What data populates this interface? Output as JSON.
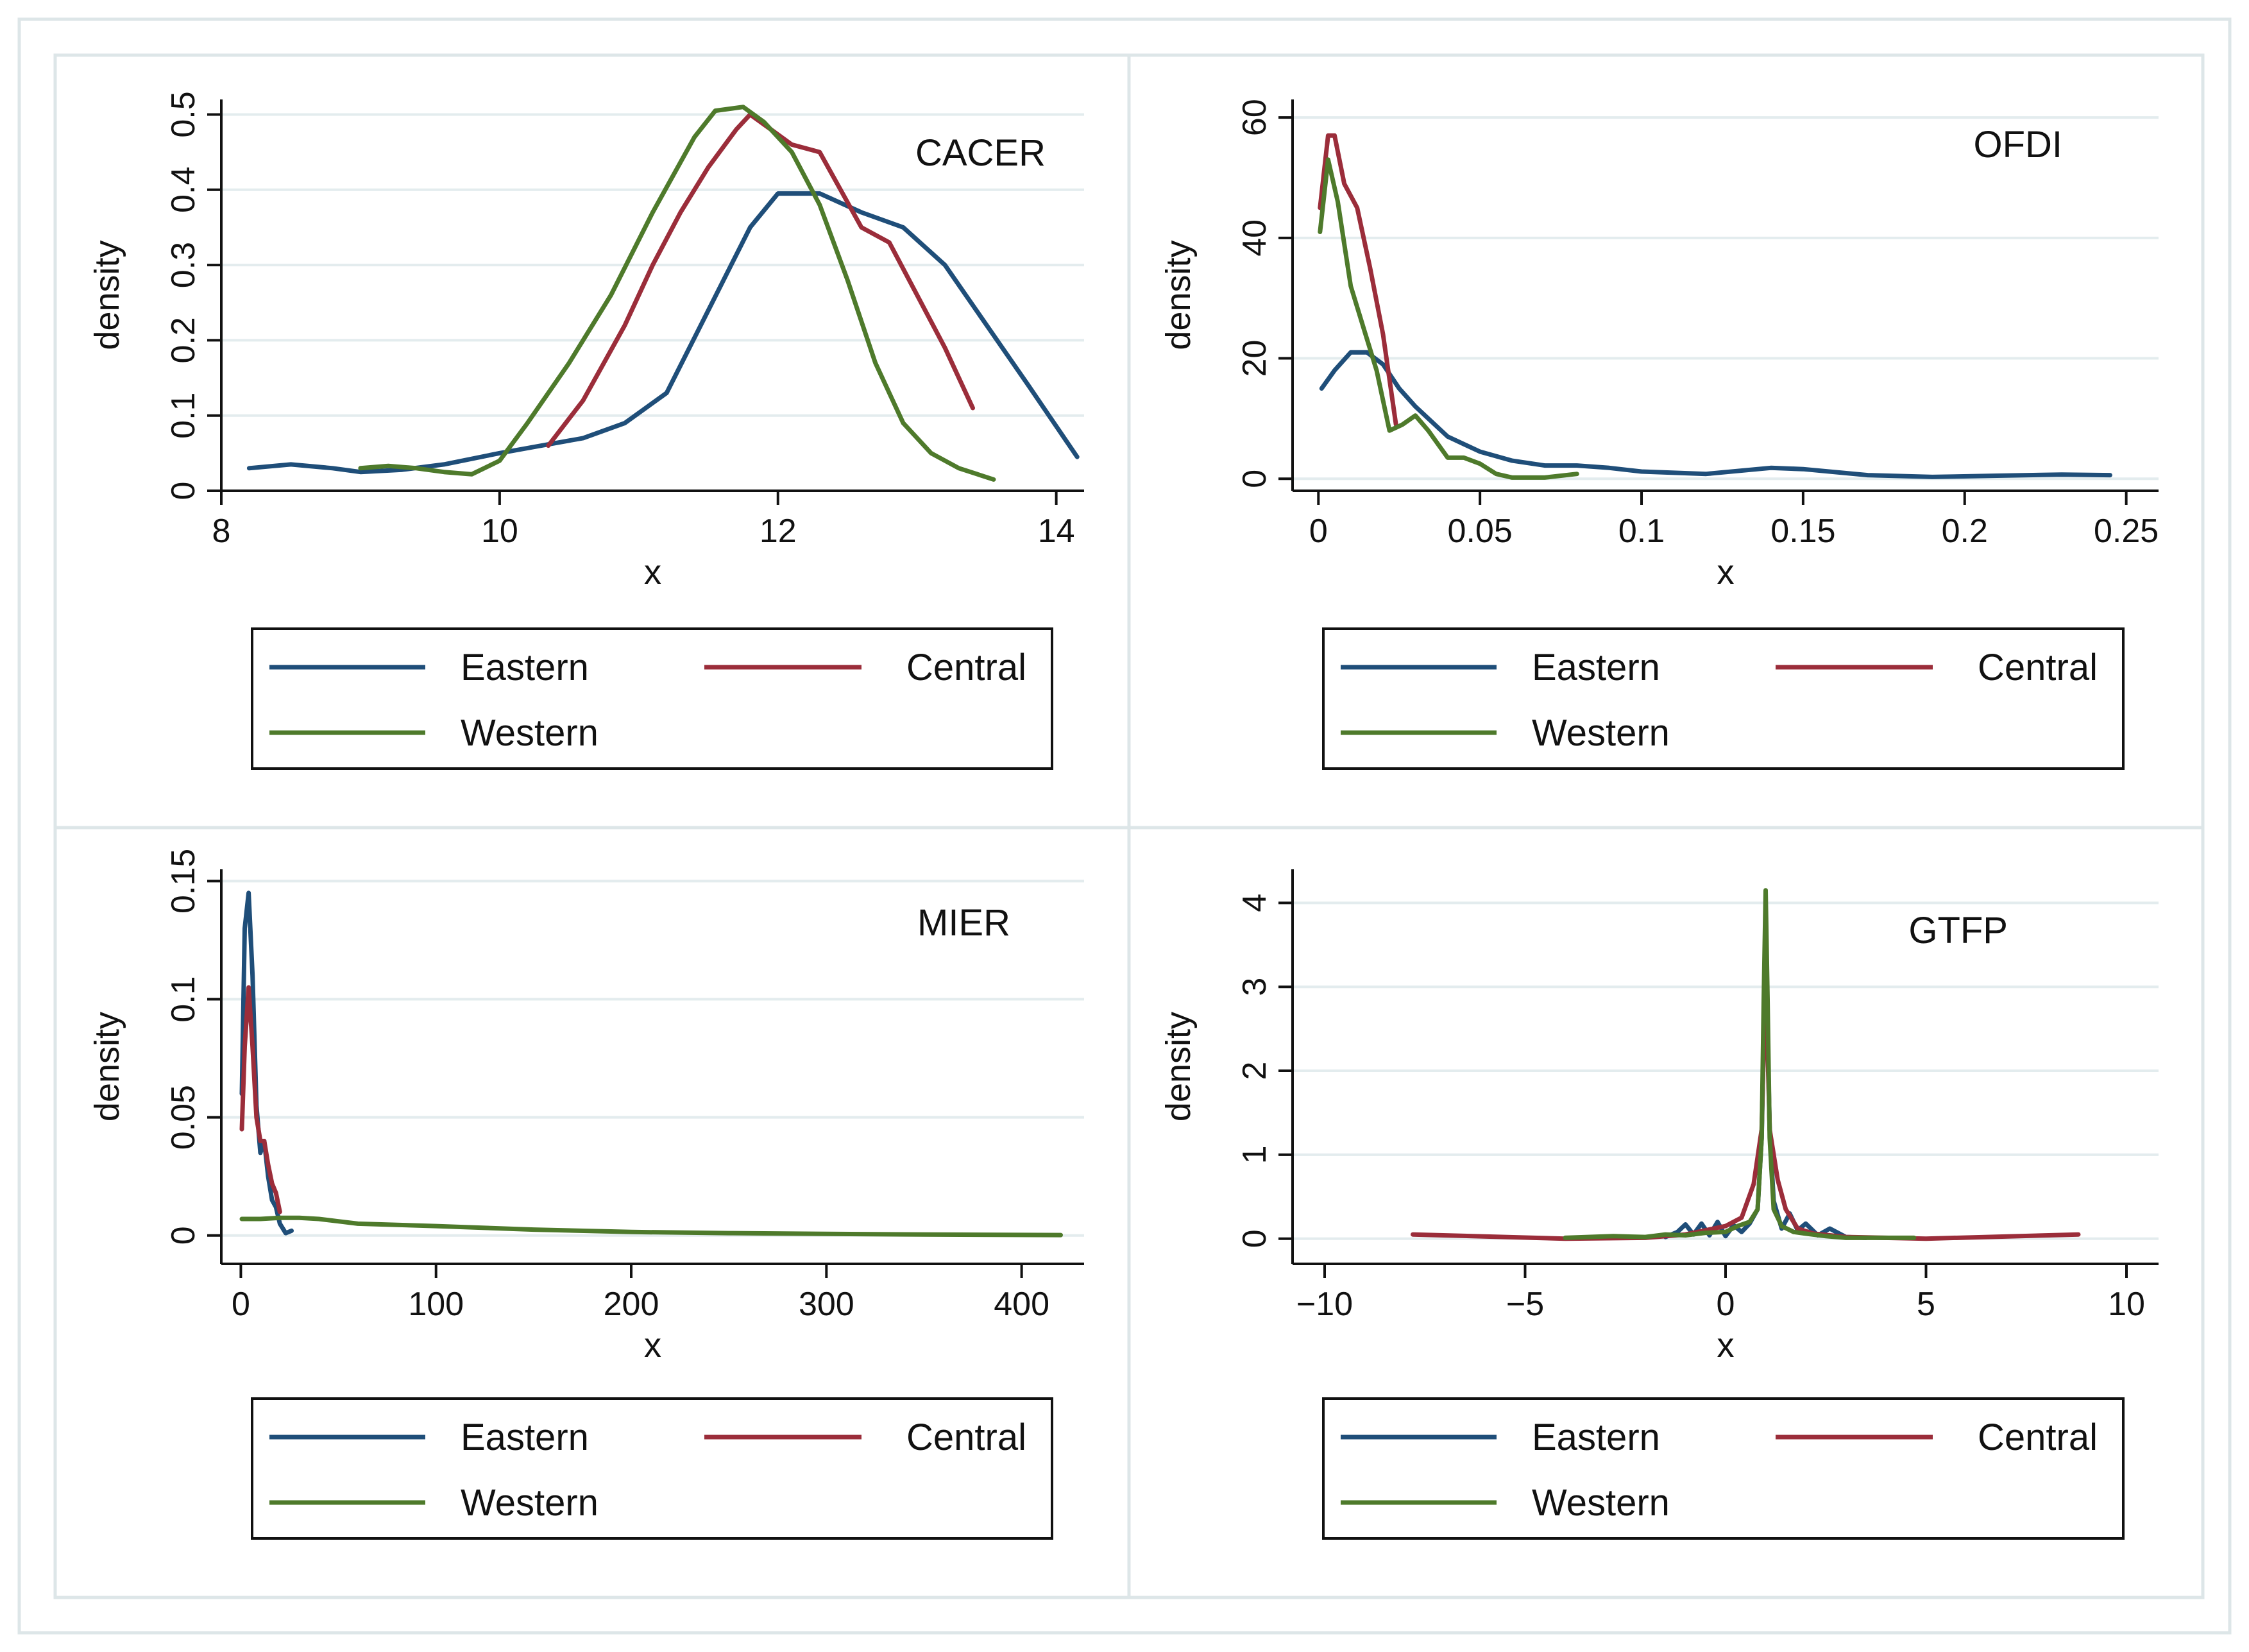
{
  "colors": {
    "eastern": "#1f4e79",
    "central": "#9b2d3a",
    "western": "#4e7a2b",
    "grid": "#e3ecee",
    "frame": "#dde6e8"
  },
  "legend_labels": [
    "Eastern",
    "Central",
    "Western"
  ],
  "chart_data": [
    {
      "type": "line",
      "title": "CACER",
      "xlabel": "x",
      "ylabel": "density",
      "xlim": [
        8,
        14.2
      ],
      "ylim": [
        0,
        0.52
      ],
      "xticks": [
        8,
        10,
        12,
        14
      ],
      "yticks": [
        0,
        0.1,
        0.2,
        0.3,
        0.4,
        0.5
      ],
      "ytick_labels": [
        "0",
        "0.1",
        "0.2",
        "0.3",
        "0.4",
        "0.5"
      ],
      "grid": true,
      "legend": "bottom",
      "series": [
        {
          "name": "Eastern",
          "x": [
            8.2,
            8.5,
            8.8,
            9.0,
            9.3,
            9.6,
            10.0,
            10.3,
            10.6,
            10.9,
            11.2,
            11.5,
            11.8,
            12.0,
            12.3,
            12.6,
            12.9,
            13.2,
            13.5,
            13.8,
            14.15
          ],
          "y": [
            0.03,
            0.035,
            0.03,
            0.025,
            0.028,
            0.035,
            0.05,
            0.06,
            0.07,
            0.09,
            0.13,
            0.24,
            0.35,
            0.395,
            0.395,
            0.37,
            0.35,
            0.3,
            0.22,
            0.14,
            0.045
          ]
        },
        {
          "name": "Central",
          "x": [
            10.35,
            10.6,
            10.9,
            11.1,
            11.3,
            11.5,
            11.7,
            11.8,
            11.95,
            12.1,
            12.3,
            12.45,
            12.6,
            12.8,
            13.0,
            13.2,
            13.4
          ],
          "y": [
            0.06,
            0.12,
            0.22,
            0.3,
            0.37,
            0.43,
            0.48,
            0.5,
            0.48,
            0.46,
            0.45,
            0.4,
            0.35,
            0.33,
            0.26,
            0.19,
            0.11
          ]
        },
        {
          "name": "Western",
          "x": [
            9.0,
            9.2,
            9.4,
            9.6,
            9.8,
            10.0,
            10.2,
            10.5,
            10.8,
            11.1,
            11.4,
            11.55,
            11.75,
            11.9,
            12.1,
            12.3,
            12.5,
            12.7,
            12.9,
            13.1,
            13.3,
            13.55
          ],
          "y": [
            0.03,
            0.033,
            0.03,
            0.025,
            0.022,
            0.04,
            0.09,
            0.17,
            0.26,
            0.37,
            0.47,
            0.505,
            0.51,
            0.49,
            0.45,
            0.38,
            0.28,
            0.17,
            0.09,
            0.05,
            0.03,
            0.015
          ]
        }
      ]
    },
    {
      "type": "line",
      "title": "OFDI",
      "xlabel": "x",
      "ylabel": "density",
      "xlim": [
        -0.008,
        0.26
      ],
      "ylim": [
        -2,
        63
      ],
      "xticks": [
        0,
        0.05,
        0.1,
        0.15,
        0.2,
        0.25
      ],
      "xtick_labels": [
        "0",
        "0.05",
        "0.1",
        "0.15",
        "0.2",
        "0.25"
      ],
      "yticks": [
        0,
        20,
        40,
        60
      ],
      "grid": true,
      "legend": "bottom",
      "series": [
        {
          "name": "Eastern",
          "x": [
            0.001,
            0.005,
            0.01,
            0.015,
            0.02,
            0.025,
            0.03,
            0.04,
            0.05,
            0.06,
            0.07,
            0.08,
            0.09,
            0.1,
            0.12,
            0.14,
            0.15,
            0.17,
            0.19,
            0.21,
            0.23,
            0.245
          ],
          "y": [
            15,
            18,
            21,
            21,
            19,
            15,
            12,
            7,
            4.5,
            3,
            2.2,
            2.2,
            1.8,
            1.2,
            0.8,
            1.8,
            1.6,
            0.6,
            0.3,
            0.5,
            0.7,
            0.6
          ]
        },
        {
          "name": "Central",
          "x": [
            0.0005,
            0.003,
            0.005,
            0.008,
            0.012,
            0.016,
            0.02,
            0.024
          ],
          "y": [
            45,
            57,
            57,
            49,
            45,
            35,
            24,
            9
          ]
        },
        {
          "name": "Western",
          "x": [
            0.0005,
            0.003,
            0.006,
            0.01,
            0.014,
            0.018,
            0.022,
            0.026,
            0.03,
            0.034,
            0.04,
            0.045,
            0.05,
            0.055,
            0.06,
            0.07,
            0.08
          ],
          "y": [
            41,
            53,
            46,
            32,
            25,
            18,
            8,
            9,
            10.5,
            8,
            3.5,
            3.5,
            2.5,
            0.8,
            0.2,
            0.2,
            0.8
          ]
        }
      ]
    },
    {
      "type": "line",
      "title": "MIER",
      "xlabel": "x",
      "ylabel": "density",
      "xlim": [
        -10,
        432
      ],
      "ylim": [
        -0.012,
        0.155
      ],
      "xticks": [
        0,
        100,
        200,
        300,
        400
      ],
      "yticks": [
        0,
        0.05,
        0.1,
        0.15
      ],
      "ytick_labels": [
        "0",
        "0.05",
        "0.1",
        "0.15"
      ],
      "grid": true,
      "legend": "bottom",
      "series": [
        {
          "name": "Eastern",
          "x": [
            0.5,
            2,
            4,
            6,
            8,
            10,
            12,
            14,
            16,
            18,
            20,
            23,
            26
          ],
          "y": [
            0.06,
            0.13,
            0.145,
            0.11,
            0.055,
            0.035,
            0.04,
            0.025,
            0.015,
            0.012,
            0.005,
            0.001,
            0.002
          ]
        },
        {
          "name": "Central",
          "x": [
            0.5,
            2,
            4,
            6,
            8,
            10,
            12,
            14,
            16,
            18,
            20
          ],
          "y": [
            0.045,
            0.08,
            0.105,
            0.08,
            0.05,
            0.04,
            0.04,
            0.03,
            0.022,
            0.018,
            0.01
          ]
        },
        {
          "name": "Western",
          "x": [
            0.5,
            10,
            20,
            30,
            40,
            50,
            60,
            80,
            100,
            150,
            200,
            250,
            300,
            350,
            420
          ],
          "y": [
            0.007,
            0.007,
            0.0075,
            0.0075,
            0.007,
            0.006,
            0.005,
            0.0045,
            0.004,
            0.0025,
            0.0015,
            0.001,
            0.0007,
            0.0004,
            0.0002
          ]
        }
      ]
    },
    {
      "type": "line",
      "title": "GTFP",
      "xlabel": "x",
      "ylabel": "density",
      "xlim": [
        -10.8,
        10.8
      ],
      "ylim": [
        -0.3,
        4.4
      ],
      "xticks": [
        -10,
        -5,
        0,
        5,
        10
      ],
      "xtick_labels": [
        "−10",
        "−5",
        "0",
        "5",
        "10"
      ],
      "yticks": [
        0,
        1,
        2,
        3,
        4
      ],
      "grid": true,
      "legend": "bottom",
      "series": [
        {
          "name": "Eastern",
          "x": [
            -1.5,
            -1.2,
            -1.0,
            -0.8,
            -0.6,
            -0.4,
            -0.2,
            0.0,
            0.2,
            0.4,
            0.6,
            0.8,
            0.9,
            1.0,
            1.1,
            1.2,
            1.4,
            1.6,
            1.8,
            2.0,
            2.3,
            2.6,
            3.0,
            3.5
          ],
          "y": [
            0.02,
            0.08,
            0.17,
            0.05,
            0.18,
            0.04,
            0.2,
            0.03,
            0.16,
            0.08,
            0.18,
            0.35,
            1.2,
            3.5,
            1.3,
            0.45,
            0.12,
            0.3,
            0.1,
            0.18,
            0.04,
            0.12,
            0.02,
            0.01
          ]
        },
        {
          "name": "Central",
          "x": [
            -7.8,
            -4.0,
            -2.0,
            -1.0,
            -0.5,
            0.0,
            0.4,
            0.7,
            0.9,
            1.0,
            1.1,
            1.3,
            1.5,
            1.8,
            2.2,
            3.0,
            5.0,
            8.8
          ],
          "y": [
            0.05,
            0.0,
            0.01,
            0.05,
            0.1,
            0.15,
            0.25,
            0.65,
            1.3,
            3.2,
            1.3,
            0.7,
            0.35,
            0.12,
            0.06,
            0.02,
            0.0,
            0.05
          ]
        },
        {
          "name": "Western",
          "x": [
            -4.0,
            -2.8,
            -2.0,
            -1.5,
            -1.0,
            -0.5,
            0.0,
            0.3,
            0.6,
            0.8,
            0.9,
            0.95,
            1.0,
            1.05,
            1.1,
            1.2,
            1.4,
            1.7,
            2.0,
            2.5,
            3.0,
            4.7
          ],
          "y": [
            0.01,
            0.03,
            0.02,
            0.05,
            0.04,
            0.07,
            0.08,
            0.15,
            0.2,
            0.35,
            1.2,
            2.8,
            4.15,
            2.8,
            1.2,
            0.35,
            0.15,
            0.08,
            0.06,
            0.03,
            0.01,
            0.01
          ]
        }
      ]
    }
  ]
}
